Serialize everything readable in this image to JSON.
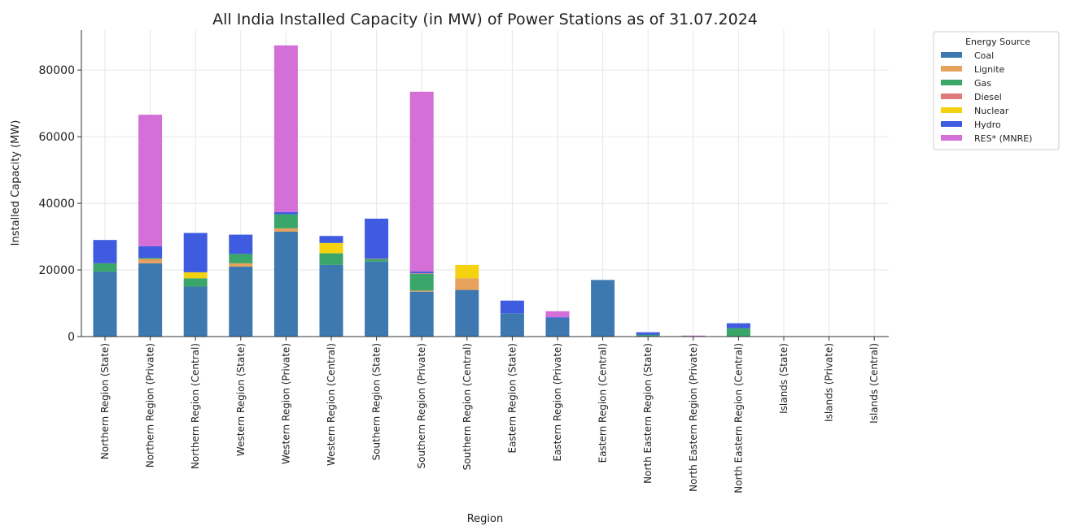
{
  "chart_data": {
    "type": "bar",
    "stacked": true,
    "title": "All India Installed Capacity (in MW) of Power Stations as of 31.07.2024",
    "xlabel": "Region",
    "ylabel": "Installed Capacity (MW)",
    "ylim": [
      0,
      92000
    ],
    "yticks": [
      0,
      20000,
      40000,
      60000,
      80000
    ],
    "grid": true,
    "legend_title": "Energy Source",
    "legend_position": "top-right, outside plot",
    "categories": [
      "Northern Region (State)",
      "Northern Region (Private)",
      "Northern Region (Central)",
      "Western Region (State)",
      "Western Region (Private)",
      "Western Region (Central)",
      "Southern Region (State)",
      "Southern Region (Private)",
      "Southern Region (Central)",
      "Eastern Region (State)",
      "Eastern Region (Private)",
      "Eastern Region (Central)",
      "North Eastern Region (State)",
      "North Eastern Region (Private)",
      "North Eastern Region (Central)",
      "Islands (State)",
      "Islands (Private)",
      "Islands (Central)"
    ],
    "series": [
      {
        "name": "Coal",
        "color": "#3d78b0",
        "values": [
          19500,
          22000,
          15000,
          21000,
          31500,
          21500,
          22500,
          13500,
          14000,
          7000,
          5500,
          17000,
          0,
          0,
          0,
          0,
          0,
          0
        ]
      },
      {
        "name": "Lignite",
        "color": "#e6a15c",
        "values": [
          0,
          1300,
          0,
          1000,
          1000,
          0,
          0,
          300,
          3500,
          0,
          0,
          0,
          0,
          0,
          0,
          0,
          0,
          0
        ]
      },
      {
        "name": "Gas",
        "color": "#3aa66a",
        "values": [
          2500,
          300,
          2500,
          2800,
          4200,
          3500,
          800,
          5000,
          0,
          0,
          0,
          0,
          500,
          0,
          2500,
          0,
          0,
          0
        ]
      },
      {
        "name": "Diesel",
        "color": "#e07b7b",
        "values": [
          0,
          0,
          0,
          0,
          0,
          0,
          100,
          200,
          0,
          0,
          0,
          0,
          0,
          0,
          0,
          100,
          50,
          0
        ]
      },
      {
        "name": "Nuclear",
        "color": "#f5d20f",
        "values": [
          0,
          0,
          1800,
          0,
          0,
          3100,
          0,
          0,
          4000,
          0,
          0,
          0,
          0,
          0,
          0,
          0,
          0,
          0
        ]
      },
      {
        "name": "Hydro",
        "color": "#3f5be0",
        "values": [
          7000,
          3500,
          11800,
          5800,
          700,
          2100,
          12000,
          500,
          0,
          3800,
          300,
          0,
          800,
          0,
          1500,
          0,
          0,
          0
        ]
      },
      {
        "name": "RES* (MNRE)",
        "color": "#d36fd6",
        "values": [
          0,
          39500,
          0,
          0,
          50000,
          0,
          0,
          54000,
          0,
          0,
          1800,
          0,
          0,
          300,
          0,
          0,
          0,
          0
        ]
      }
    ]
  }
}
